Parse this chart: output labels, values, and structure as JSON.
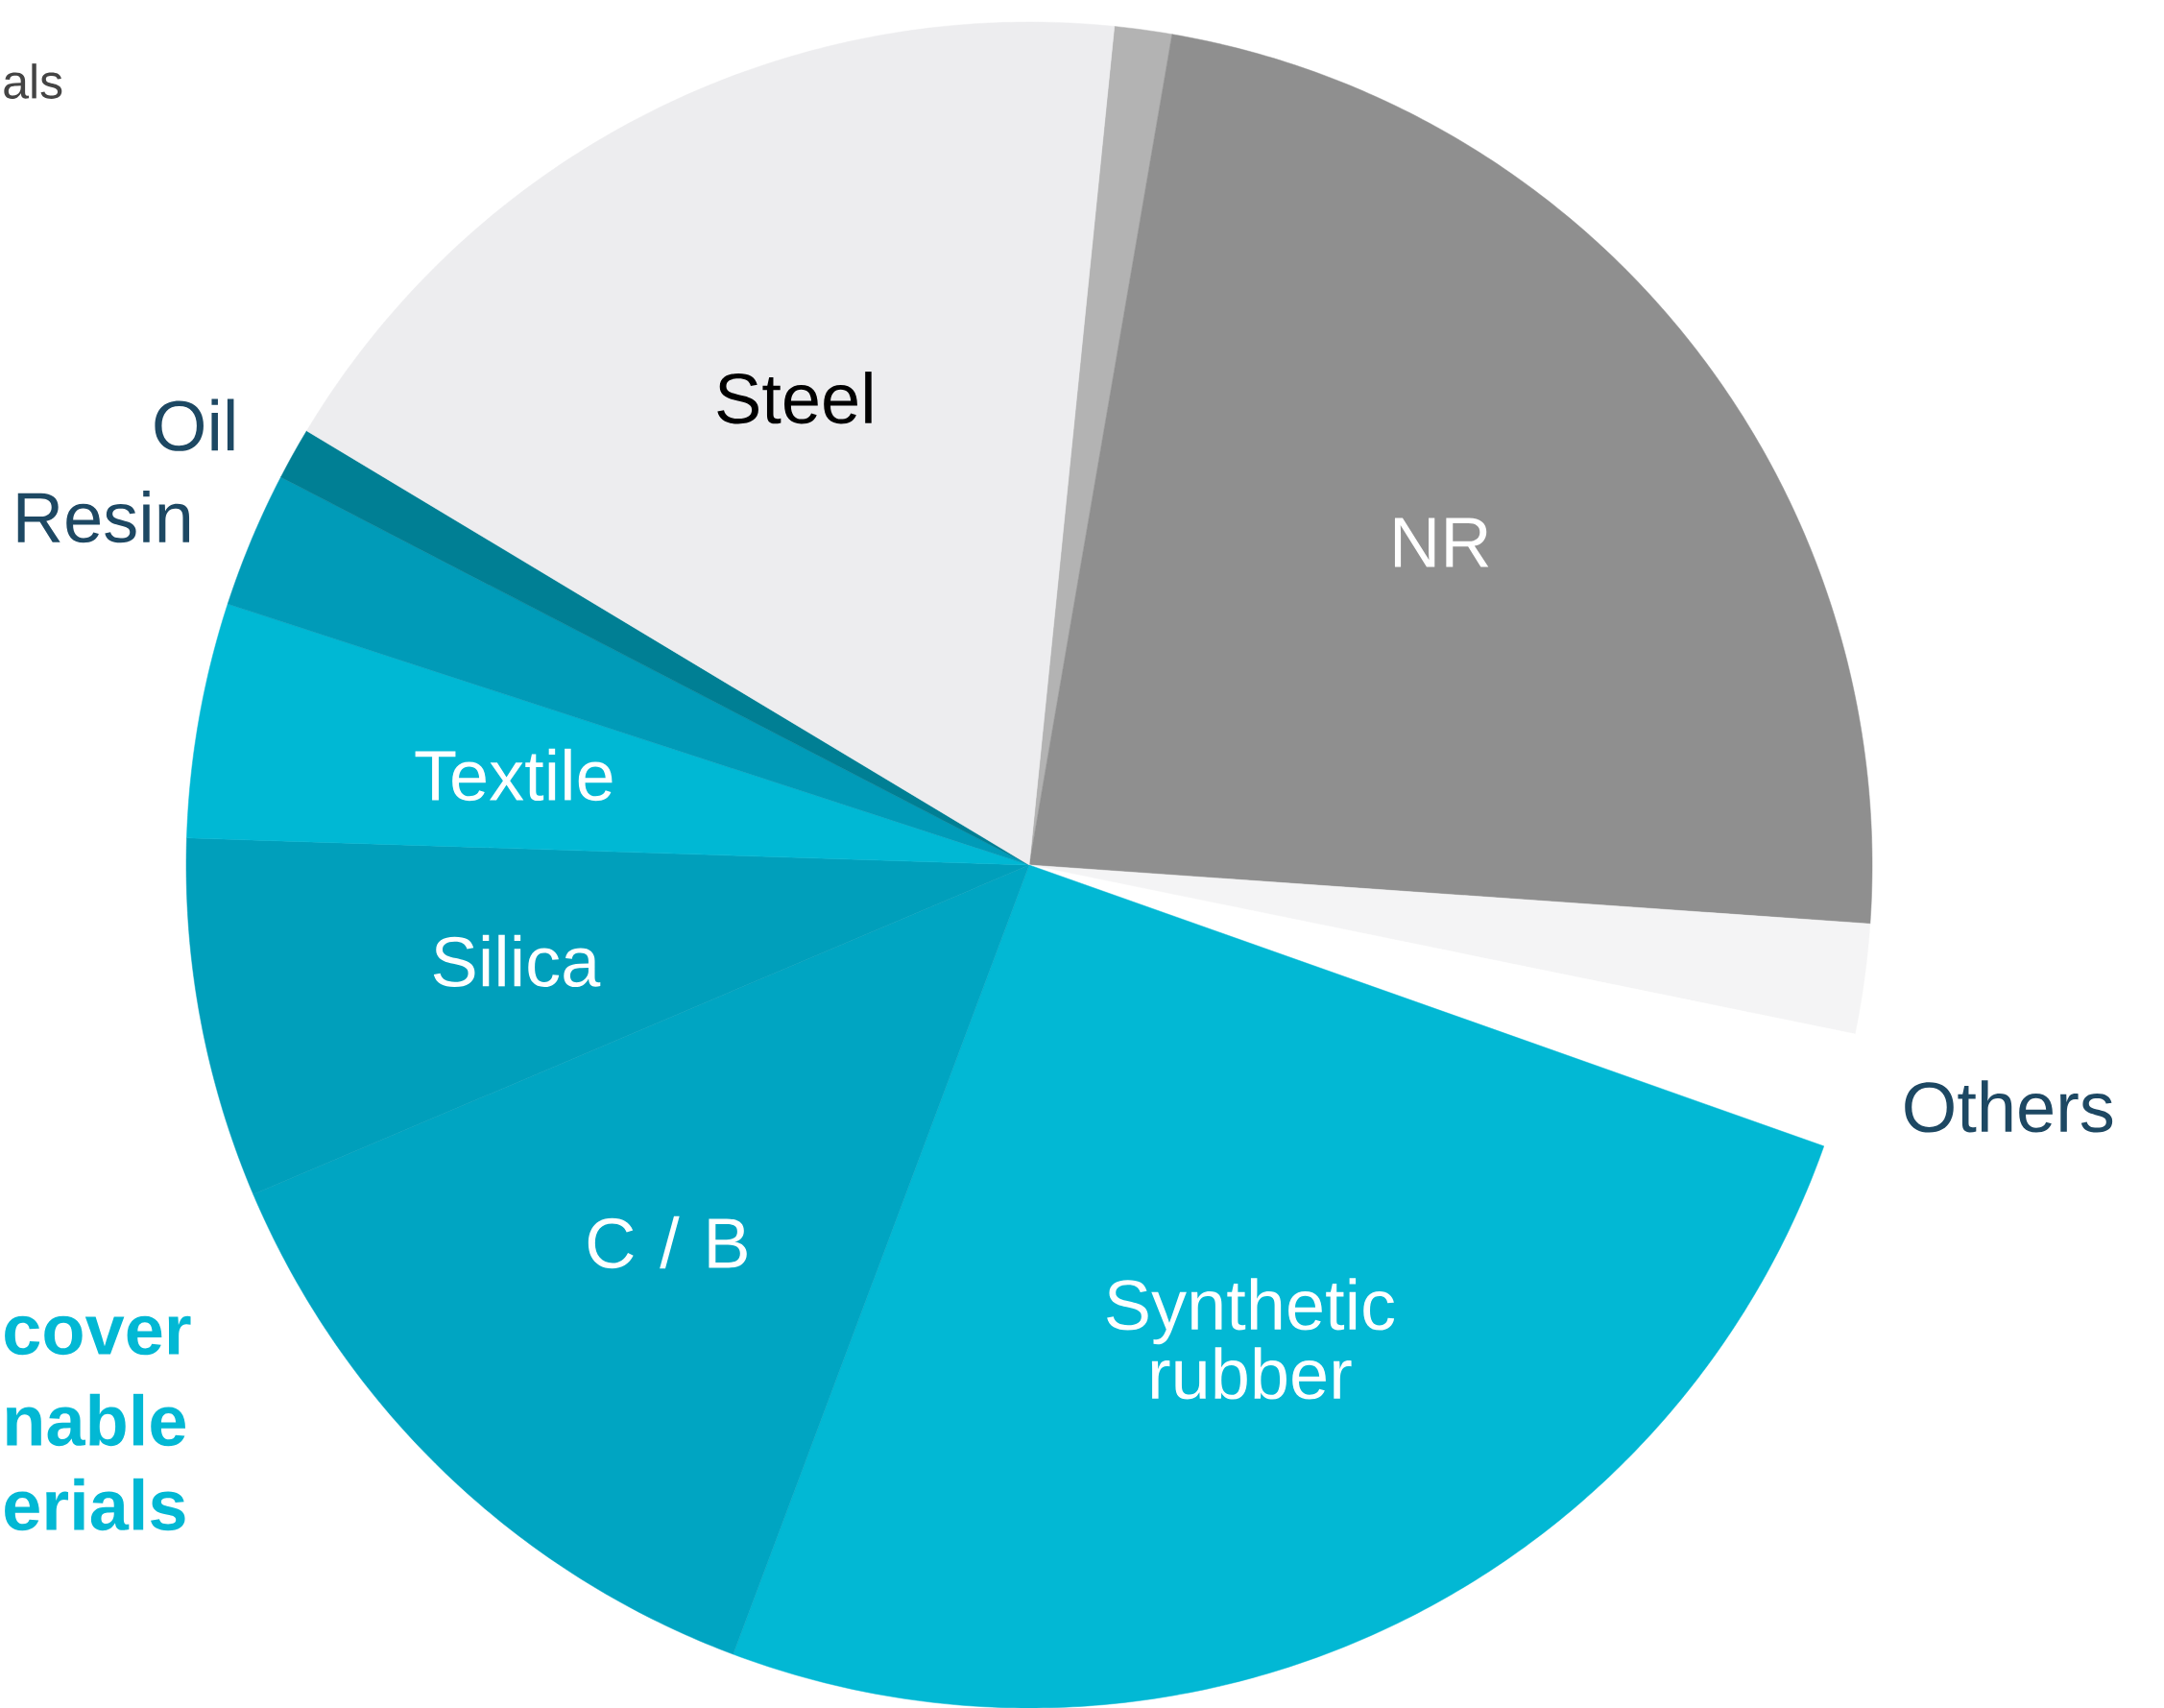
{
  "chart_data": {
    "type": "pie",
    "categories": [
      null,
      "NR",
      null,
      "Others",
      "Synthetic rubber",
      "C / B",
      "Silica",
      "Textile",
      "Resin",
      "Oil",
      "Steel"
    ],
    "values": [
      1.1,
      23.4,
      2.1,
      2.2,
      25.3,
      12.9,
      6.9,
      4.5,
      2.6,
      1.0,
      18.0
    ],
    "colors": [
      "#b3b3b3",
      "#8f8f8f",
      "#f4f4f5",
      "#ffffff",
      "#02b8d4",
      "#00a5c2",
      "#009fbb",
      "#00b8d4",
      "#009bb8",
      "#007f94",
      "#ededef"
    ],
    "annotations": [
      "als",
      "**cover**",
      "**nable**",
      "**erials**"
    ]
  }
}
